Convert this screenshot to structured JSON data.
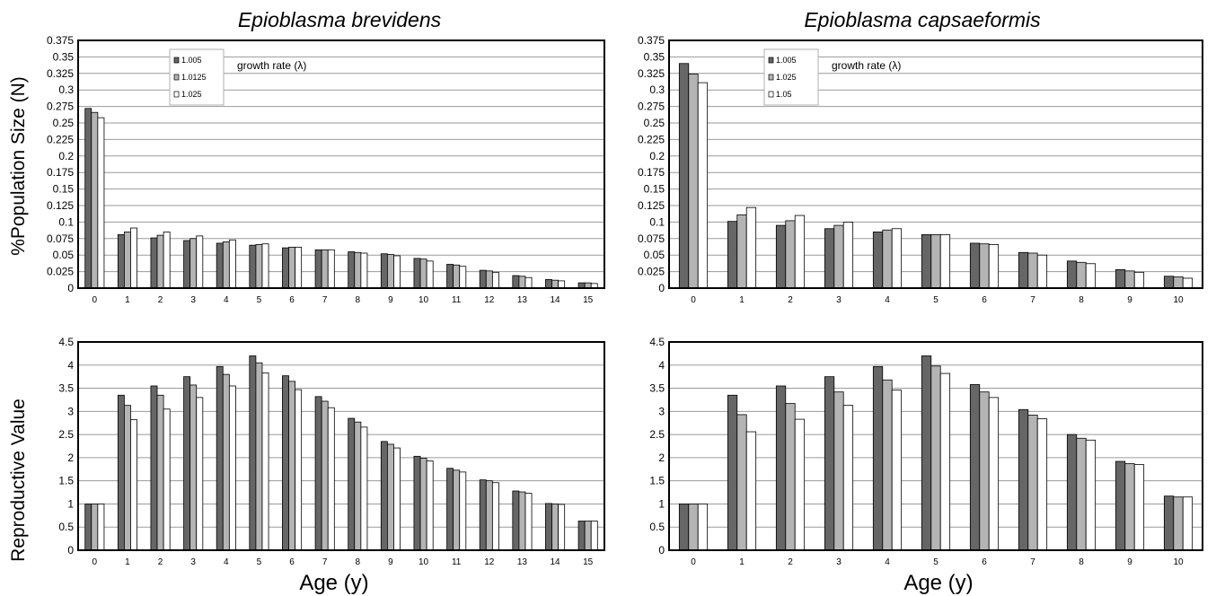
{
  "chart_data": [
    {
      "type": "bar",
      "title": "Epioblasma brevidens",
      "ylabel": "%Population Size (N)",
      "xlabel": "",
      "categories": [
        "0",
        "1",
        "2",
        "3",
        "4",
        "5",
        "6",
        "7",
        "8",
        "9",
        "10",
        "11",
        "12",
        "13",
        "14",
        "15"
      ],
      "ylim": [
        0,
        0.375
      ],
      "yticks": [
        "0",
        "0.025",
        "0.05",
        "0.075",
        "0.1",
        "0.125",
        "0.15",
        "0.175",
        "0.2",
        "0.225",
        "0.25",
        "0.275",
        "0.3",
        "0.325",
        "0.35",
        "0.375"
      ],
      "legend_title": "growth rate (λ)",
      "series": [
        {
          "name": "1.005",
          "color": "#666666",
          "values": [
            0.272,
            0.081,
            0.076,
            0.072,
            0.068,
            0.065,
            0.061,
            0.058,
            0.055,
            0.052,
            0.045,
            0.036,
            0.027,
            0.019,
            0.013,
            0.008
          ]
        },
        {
          "name": "1.0125",
          "color": "#b4b4b4",
          "values": [
            0.266,
            0.085,
            0.08,
            0.075,
            0.07,
            0.066,
            0.062,
            0.058,
            0.054,
            0.051,
            0.044,
            0.035,
            0.026,
            0.018,
            0.012,
            0.008
          ]
        },
        {
          "name": "1.025",
          "color": "#ffffff",
          "values": [
            0.258,
            0.091,
            0.085,
            0.079,
            0.073,
            0.067,
            0.062,
            0.058,
            0.053,
            0.049,
            0.041,
            0.033,
            0.024,
            0.016,
            0.011,
            0.007
          ]
        }
      ]
    },
    {
      "type": "bar",
      "title": "Epioblasma capsaeformis",
      "ylabel": "",
      "xlabel": "",
      "categories": [
        "0",
        "1",
        "2",
        "3",
        "4",
        "5",
        "6",
        "7",
        "8",
        "9",
        "10"
      ],
      "ylim": [
        0,
        0.375
      ],
      "yticks": [
        "0",
        "0.025",
        "0.05",
        "0.075",
        "0.1",
        "0.125",
        "0.15",
        "0.175",
        "0.2",
        "0.225",
        "0.25",
        "0.275",
        "0.3",
        "0.325",
        "0.35",
        "0.375"
      ],
      "legend_title": "growth rate (λ)",
      "series": [
        {
          "name": "1.005",
          "color": "#666666",
          "values": [
            0.34,
            0.101,
            0.095,
            0.09,
            0.085,
            0.081,
            0.068,
            0.054,
            0.041,
            0.028,
            0.018
          ]
        },
        {
          "name": "1.025",
          "color": "#b4b4b4",
          "values": [
            0.324,
            0.111,
            0.102,
            0.095,
            0.088,
            0.081,
            0.067,
            0.053,
            0.039,
            0.026,
            0.017
          ]
        },
        {
          "name": "1.05",
          "color": "#ffffff",
          "values": [
            0.311,
            0.122,
            0.11,
            0.1,
            0.09,
            0.081,
            0.066,
            0.05,
            0.037,
            0.024,
            0.015
          ]
        }
      ]
    },
    {
      "type": "bar",
      "title": "",
      "ylabel": "Reproductive Value",
      "xlabel": "Age (y)",
      "categories": [
        "0",
        "1",
        "2",
        "3",
        "4",
        "5",
        "6",
        "7",
        "8",
        "9",
        "10",
        "11",
        "12",
        "13",
        "14",
        "15"
      ],
      "ylim": [
        0,
        4.5
      ],
      "yticks": [
        "0",
        "0.5",
        "1",
        "1.5",
        "2",
        "2.5",
        "3",
        "3.5",
        "4",
        "4.5"
      ],
      "series": [
        {
          "name": "1.005",
          "color": "#666666",
          "values": [
            1.0,
            3.35,
            3.55,
            3.75,
            3.97,
            4.2,
            3.77,
            3.32,
            2.85,
            2.35,
            2.03,
            1.77,
            1.52,
            1.28,
            1.01,
            0.63
          ]
        },
        {
          "name": "1.0125",
          "color": "#b4b4b4",
          "values": [
            1.0,
            3.13,
            3.35,
            3.57,
            3.8,
            4.05,
            3.65,
            3.22,
            2.77,
            2.29,
            1.99,
            1.73,
            1.5,
            1.26,
            1.0,
            0.63
          ]
        },
        {
          "name": "1.025",
          "color": "#ffffff",
          "values": [
            1.0,
            2.82,
            3.05,
            3.3,
            3.55,
            3.83,
            3.47,
            3.08,
            2.66,
            2.21,
            1.93,
            1.69,
            1.46,
            1.23,
            0.99,
            0.63
          ]
        }
      ]
    },
    {
      "type": "bar",
      "title": "",
      "ylabel": "",
      "xlabel": "Age (y)",
      "categories": [
        "0",
        "1",
        "2",
        "3",
        "4",
        "5",
        "6",
        "7",
        "8",
        "9",
        "10"
      ],
      "ylim": [
        0,
        4.5
      ],
      "yticks": [
        "0",
        "0.5",
        "1",
        "1.5",
        "2",
        "2.5",
        "3",
        "3.5",
        "4",
        "4.5"
      ],
      "series": [
        {
          "name": "1.005",
          "color": "#666666",
          "values": [
            1.0,
            3.35,
            3.55,
            3.75,
            3.97,
            4.2,
            3.58,
            3.04,
            2.5,
            1.92,
            1.17
          ]
        },
        {
          "name": "1.025",
          "color": "#b4b4b4",
          "values": [
            1.0,
            2.93,
            3.17,
            3.42,
            3.68,
            3.98,
            3.42,
            2.92,
            2.42,
            1.87,
            1.15
          ]
        },
        {
          "name": "1.05",
          "color": "#ffffff",
          "values": [
            1.0,
            2.56,
            2.83,
            3.13,
            3.46,
            3.82,
            3.3,
            2.84,
            2.38,
            1.85,
            1.15
          ]
        }
      ]
    }
  ]
}
